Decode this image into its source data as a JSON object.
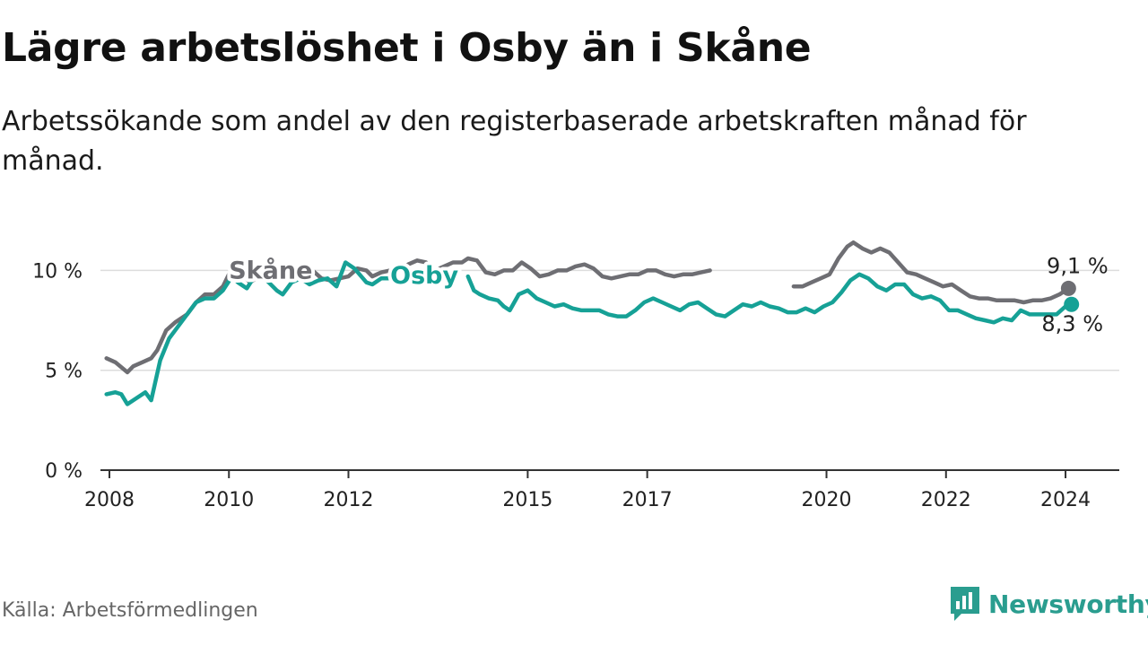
{
  "header": {
    "title": "Lägre arbetslöshet i Osby än i Skåne",
    "subtitle": "Arbetssökande som andel av den registerbaserade arbetskraften månad för månad."
  },
  "footer": {
    "source": "Källa: Arbetsförmedlingen",
    "brand": "Newsworthy"
  },
  "colors": {
    "osby": "#16a196",
    "skane": "#6e6e73",
    "grid": "#dddddd",
    "axis": "#333333"
  },
  "chart_data": {
    "type": "line",
    "title": "Lägre arbetslöshet i Osby än i Skåne",
    "ylabel": "",
    "xlabel": "",
    "ylim": [
      0,
      11.5
    ],
    "xlim": [
      2007.85,
      2024.9
    ],
    "y_ticks": [
      {
        "value": 0,
        "label": "0 %"
      },
      {
        "value": 5,
        "label": "5 %"
      },
      {
        "value": 10,
        "label": "10 %"
      }
    ],
    "x_ticks": [
      {
        "value": 2008,
        "label": "2008"
      },
      {
        "value": 2010,
        "label": "2010"
      },
      {
        "value": 2012,
        "label": "2012"
      },
      {
        "value": 2015,
        "label": "2015"
      },
      {
        "value": 2017,
        "label": "2017"
      },
      {
        "value": 2020,
        "label": "2020"
      },
      {
        "value": 2022,
        "label": "2022"
      },
      {
        "value": 2024,
        "label": "2024"
      }
    ],
    "series": [
      {
        "name": "Skåne",
        "key": "skane",
        "label_at": [
          2010.0,
          9.6
        ],
        "end_label": "9,1 %",
        "points": [
          [
            2007.95,
            5.6
          ],
          [
            2008.1,
            5.4
          ],
          [
            2008.3,
            4.9
          ],
          [
            2008.4,
            5.2
          ],
          [
            2008.55,
            5.4
          ],
          [
            2008.7,
            5.6
          ],
          [
            2008.8,
            6.0
          ],
          [
            2008.95,
            7.0
          ],
          [
            2009.1,
            7.4
          ],
          [
            2009.3,
            7.8
          ],
          [
            2009.45,
            8.4
          ],
          [
            2009.6,
            8.8
          ],
          [
            2009.75,
            8.8
          ],
          [
            2009.9,
            9.2
          ],
          [
            2010.0,
            9.8
          ],
          [
            2010.1,
            10.0
          ],
          [
            2010.2,
            9.9
          ],
          [
            2010.35,
            9.4
          ],
          [
            2010.5,
            9.7
          ],
          [
            2010.65,
            9.8
          ],
          [
            2010.8,
            9.6
          ],
          [
            2011.0,
            9.6
          ],
          [
            2011.15,
            9.9
          ],
          [
            2011.3,
            10.2
          ],
          [
            2011.4,
            10.0
          ],
          [
            2011.55,
            9.6
          ],
          [
            2011.7,
            9.5
          ],
          [
            2011.85,
            9.6
          ],
          [
            2012.0,
            9.7
          ],
          [
            2012.15,
            10.1
          ],
          [
            2012.3,
            10.0
          ],
          [
            2012.4,
            9.7
          ],
          [
            2012.55,
            9.9
          ],
          [
            2012.7,
            10.0
          ],
          [
            2012.85,
            10.0
          ],
          [
            2013.0,
            10.3
          ],
          [
            2013.15,
            10.5
          ],
          [
            2013.3,
            10.4
          ],
          [
            2013.45,
            10.0
          ],
          [
            2013.6,
            10.2
          ],
          [
            2013.75,
            10.4
          ],
          [
            2013.9,
            10.4
          ],
          [
            2014.0,
            10.6
          ],
          [
            2014.15,
            10.5
          ],
          [
            2014.3,
            9.9
          ],
          [
            2014.45,
            9.8
          ],
          [
            2014.6,
            10.0
          ],
          [
            2014.75,
            10.0
          ],
          [
            2014.9,
            10.4
          ],
          [
            2015.05,
            10.1
          ],
          [
            2015.2,
            9.7
          ],
          [
            2015.35,
            9.8
          ],
          [
            2015.5,
            10.0
          ],
          [
            2015.65,
            10.0
          ],
          [
            2015.8,
            10.2
          ],
          [
            2015.95,
            10.3
          ],
          [
            2016.1,
            10.1
          ],
          [
            2016.25,
            9.7
          ],
          [
            2016.4,
            9.6
          ],
          [
            2016.55,
            9.7
          ],
          [
            2016.7,
            9.8
          ],
          [
            2016.85,
            9.8
          ],
          [
            2017.0,
            10.0
          ],
          [
            2017.15,
            10.0
          ],
          [
            2017.3,
            9.8
          ],
          [
            2017.45,
            9.7
          ],
          [
            2017.6,
            9.8
          ],
          [
            2017.75,
            9.8
          ],
          [
            2017.9,
            9.9
          ],
          [
            2018.05,
            10.0
          ],
          [
            2019.45,
            9.2
          ],
          [
            2019.6,
            9.2
          ],
          [
            2019.75,
            9.4
          ],
          [
            2019.9,
            9.6
          ],
          [
            2020.05,
            9.8
          ],
          [
            2020.2,
            10.6
          ],
          [
            2020.35,
            11.2
          ],
          [
            2020.45,
            11.4
          ],
          [
            2020.6,
            11.1
          ],
          [
            2020.75,
            10.9
          ],
          [
            2020.9,
            11.1
          ],
          [
            2021.05,
            10.9
          ],
          [
            2021.2,
            10.4
          ],
          [
            2021.35,
            9.9
          ],
          [
            2021.5,
            9.8
          ],
          [
            2021.65,
            9.6
          ],
          [
            2021.8,
            9.4
          ],
          [
            2021.95,
            9.2
          ],
          [
            2022.1,
            9.3
          ],
          [
            2022.25,
            9.0
          ],
          [
            2022.4,
            8.7
          ],
          [
            2022.55,
            8.6
          ],
          [
            2022.7,
            8.6
          ],
          [
            2022.85,
            8.5
          ],
          [
            2023.0,
            8.5
          ],
          [
            2023.15,
            8.5
          ],
          [
            2023.3,
            8.4
          ],
          [
            2023.45,
            8.5
          ],
          [
            2023.6,
            8.5
          ],
          [
            2023.75,
            8.6
          ],
          [
            2023.9,
            8.8
          ],
          [
            2024.05,
            9.1
          ]
        ]
      },
      {
        "name": "Osby",
        "key": "osby",
        "label_at": [
          2012.7,
          9.35
        ],
        "end_label": "8,3 %",
        "points": [
          [
            2007.95,
            3.8
          ],
          [
            2008.1,
            3.9
          ],
          [
            2008.2,
            3.8
          ],
          [
            2008.3,
            3.3
          ],
          [
            2008.45,
            3.6
          ],
          [
            2008.6,
            3.9
          ],
          [
            2008.7,
            3.5
          ],
          [
            2008.85,
            5.5
          ],
          [
            2009.0,
            6.6
          ],
          [
            2009.1,
            7.0
          ],
          [
            2009.25,
            7.6
          ],
          [
            2009.45,
            8.4
          ],
          [
            2009.6,
            8.6
          ],
          [
            2009.75,
            8.6
          ],
          [
            2009.9,
            9.0
          ],
          [
            2010.05,
            9.7
          ],
          [
            2010.15,
            9.4
          ],
          [
            2010.3,
            9.1
          ],
          [
            2010.45,
            9.8
          ],
          [
            2010.6,
            9.6
          ],
          [
            2010.8,
            9.0
          ],
          [
            2010.9,
            8.8
          ],
          [
            2011.05,
            9.4
          ],
          [
            2011.2,
            9.6
          ],
          [
            2011.35,
            9.3
          ],
          [
            2011.5,
            9.5
          ],
          [
            2011.65,
            9.6
          ],
          [
            2011.8,
            9.2
          ],
          [
            2011.95,
            10.4
          ],
          [
            2012.1,
            10.1
          ],
          [
            2012.3,
            9.4
          ],
          [
            2012.4,
            9.3
          ],
          [
            2012.55,
            9.6
          ],
          [
            2012.7,
            9.6
          ],
          [
            2014.0,
            9.7
          ],
          [
            2014.1,
            9.0
          ],
          [
            2014.2,
            8.8
          ],
          [
            2014.35,
            8.6
          ],
          [
            2014.5,
            8.5
          ],
          [
            2014.6,
            8.2
          ],
          [
            2014.7,
            8.0
          ],
          [
            2014.85,
            8.8
          ],
          [
            2015.0,
            9.0
          ],
          [
            2015.15,
            8.6
          ],
          [
            2015.3,
            8.4
          ],
          [
            2015.45,
            8.2
          ],
          [
            2015.6,
            8.3
          ],
          [
            2015.75,
            8.1
          ],
          [
            2015.9,
            8.0
          ],
          [
            2016.05,
            8.0
          ],
          [
            2016.2,
            8.0
          ],
          [
            2016.35,
            7.8
          ],
          [
            2016.5,
            7.7
          ],
          [
            2016.65,
            7.7
          ],
          [
            2016.8,
            8.0
          ],
          [
            2016.95,
            8.4
          ],
          [
            2017.1,
            8.6
          ],
          [
            2017.25,
            8.4
          ],
          [
            2017.4,
            8.2
          ],
          [
            2017.55,
            8.0
          ],
          [
            2017.7,
            8.3
          ],
          [
            2017.85,
            8.4
          ],
          [
            2018.0,
            8.1
          ],
          [
            2018.15,
            7.8
          ],
          [
            2018.3,
            7.7
          ],
          [
            2018.45,
            8.0
          ],
          [
            2018.6,
            8.3
          ],
          [
            2018.75,
            8.2
          ],
          [
            2018.9,
            8.4
          ],
          [
            2019.05,
            8.2
          ],
          [
            2019.2,
            8.1
          ],
          [
            2019.35,
            7.9
          ],
          [
            2019.5,
            7.9
          ],
          [
            2019.65,
            8.1
          ],
          [
            2019.8,
            7.9
          ],
          [
            2019.95,
            8.2
          ],
          [
            2020.1,
            8.4
          ],
          [
            2020.25,
            8.9
          ],
          [
            2020.4,
            9.5
          ],
          [
            2020.55,
            9.8
          ],
          [
            2020.7,
            9.6
          ],
          [
            2020.85,
            9.2
          ],
          [
            2021.0,
            9.0
          ],
          [
            2021.15,
            9.3
          ],
          [
            2021.3,
            9.3
          ],
          [
            2021.45,
            8.8
          ],
          [
            2021.6,
            8.6
          ],
          [
            2021.75,
            8.7
          ],
          [
            2021.9,
            8.5
          ],
          [
            2022.05,
            8.0
          ],
          [
            2022.2,
            8.0
          ],
          [
            2022.35,
            7.8
          ],
          [
            2022.5,
            7.6
          ],
          [
            2022.65,
            7.5
          ],
          [
            2022.8,
            7.4
          ],
          [
            2022.95,
            7.6
          ],
          [
            2023.1,
            7.5
          ],
          [
            2023.25,
            8.0
          ],
          [
            2023.4,
            7.8
          ],
          [
            2023.55,
            7.8
          ],
          [
            2023.7,
            7.8
          ],
          [
            2023.85,
            7.8
          ],
          [
            2024.0,
            8.2
          ],
          [
            2024.1,
            8.3
          ]
        ]
      }
    ],
    "gaps": {
      "skane": [
        [
          2018.05,
          2019.45
        ]
      ],
      "osby": [
        [
          2012.7,
          2014.0
        ]
      ]
    }
  }
}
